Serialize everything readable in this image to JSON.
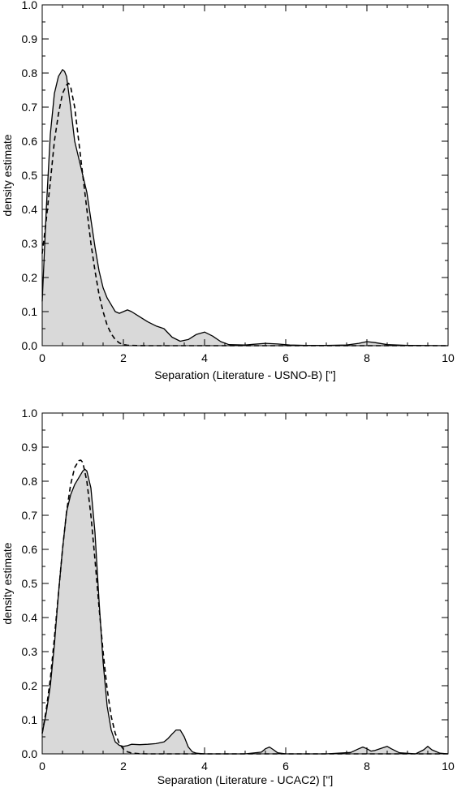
{
  "chart_data": [
    {
      "type": "area",
      "xlabel": "Separation (Literature - USNO-B)  [\"]",
      "ylabel": "density estimate",
      "xlim": [
        0,
        10
      ],
      "ylim": [
        0,
        1.0
      ],
      "x_ticks": [
        "0",
        "2",
        "4",
        "6",
        "8",
        "10"
      ],
      "y_ticks": [
        "0.0",
        "0.1",
        "0.2",
        "0.3",
        "0.4",
        "0.5",
        "0.6",
        "0.7",
        "0.8",
        "0.9",
        "1.0"
      ],
      "grid": false,
      "series": [
        {
          "style": "solid-filled",
          "fill": "#d9d9d9",
          "x": [
            0,
            0.1,
            0.2,
            0.3,
            0.4,
            0.5,
            0.55,
            0.6,
            0.7,
            0.8,
            0.9,
            1.0,
            1.1,
            1.2,
            1.3,
            1.4,
            1.5,
            1.6,
            1.7,
            1.8,
            1.9,
            2.0,
            2.1,
            2.2,
            2.4,
            2.6,
            2.8,
            3.0,
            3.2,
            3.4,
            3.6,
            3.8,
            4.0,
            4.2,
            4.4,
            4.6,
            5.0,
            5.2,
            5.5,
            5.8,
            6.1,
            6.5,
            7.0,
            7.5,
            7.8,
            8.0,
            8.2,
            8.5,
            9.0,
            10.0
          ],
          "y": [
            0.13,
            0.4,
            0.62,
            0.74,
            0.79,
            0.81,
            0.805,
            0.79,
            0.7,
            0.6,
            0.55,
            0.5,
            0.45,
            0.37,
            0.29,
            0.22,
            0.17,
            0.14,
            0.12,
            0.1,
            0.095,
            0.1,
            0.105,
            0.1,
            0.085,
            0.07,
            0.058,
            0.05,
            0.025,
            0.013,
            0.018,
            0.033,
            0.04,
            0.028,
            0.012,
            0.003,
            0.002,
            0.004,
            0.007,
            0.005,
            0.002,
            0.001,
            0.001,
            0.002,
            0.007,
            0.012,
            0.009,
            0.003,
            0.001,
            0.0
          ]
        },
        {
          "style": "dashed",
          "x": [
            0,
            0.1,
            0.2,
            0.3,
            0.4,
            0.5,
            0.6,
            0.65,
            0.7,
            0.8,
            0.9,
            1.0,
            1.1,
            1.2,
            1.3,
            1.4,
            1.5,
            1.6,
            1.7,
            1.8,
            1.9,
            2.0,
            2.1,
            2.2,
            2.4,
            2.6,
            3.0,
            4.0,
            6.0,
            8.0,
            10.0
          ],
          "y": [
            0.27,
            0.37,
            0.48,
            0.6,
            0.68,
            0.74,
            0.765,
            0.77,
            0.76,
            0.7,
            0.6,
            0.5,
            0.4,
            0.3,
            0.22,
            0.15,
            0.1,
            0.06,
            0.035,
            0.018,
            0.008,
            0.003,
            0.0015,
            0.0008,
            0.0003,
            0.0001,
            0.0,
            0.0,
            0.0,
            0.0,
            0.0
          ]
        }
      ]
    },
    {
      "type": "area",
      "xlabel": "Separation (Literature - UCAC2)  [\"]",
      "ylabel": "density estimate",
      "xlim": [
        0,
        10
      ],
      "ylim": [
        0,
        1.0
      ],
      "x_ticks": [
        "0",
        "2",
        "4",
        "6",
        "8",
        "10"
      ],
      "y_ticks": [
        "0.0",
        "0.1",
        "0.2",
        "0.3",
        "0.4",
        "0.5",
        "0.6",
        "0.7",
        "0.8",
        "0.9",
        "1.0"
      ],
      "grid": false,
      "series": [
        {
          "style": "solid-filled",
          "fill": "#d9d9d9",
          "x": [
            0,
            0.1,
            0.2,
            0.3,
            0.4,
            0.5,
            0.6,
            0.7,
            0.8,
            0.9,
            1.0,
            1.05,
            1.1,
            1.2,
            1.3,
            1.4,
            1.5,
            1.6,
            1.7,
            1.8,
            1.9,
            2.0,
            2.1,
            2.2,
            2.4,
            2.6,
            2.8,
            3.0,
            3.1,
            3.2,
            3.3,
            3.4,
            3.5,
            3.6,
            3.7,
            3.8,
            4.0,
            4.5,
            5.0,
            5.4,
            5.5,
            5.6,
            5.7,
            5.8,
            6.0,
            7.0,
            7.6,
            7.8,
            7.9,
            8.0,
            8.1,
            8.2,
            8.4,
            8.5,
            8.6,
            8.8,
            9.2,
            9.4,
            9.5,
            9.6,
            9.8,
            10.0
          ],
          "y": [
            0.06,
            0.12,
            0.2,
            0.32,
            0.47,
            0.6,
            0.71,
            0.76,
            0.79,
            0.81,
            0.83,
            0.835,
            0.83,
            0.78,
            0.65,
            0.45,
            0.27,
            0.14,
            0.07,
            0.035,
            0.025,
            0.022,
            0.024,
            0.028,
            0.027,
            0.028,
            0.03,
            0.035,
            0.045,
            0.058,
            0.07,
            0.07,
            0.05,
            0.02,
            0.006,
            0.002,
            0.0,
            0.0,
            0.0,
            0.005,
            0.015,
            0.02,
            0.012,
            0.003,
            0.0,
            0.0,
            0.004,
            0.015,
            0.02,
            0.015,
            0.008,
            0.01,
            0.018,
            0.022,
            0.015,
            0.003,
            0.0,
            0.012,
            0.022,
            0.012,
            0.002,
            0.0
          ]
        },
        {
          "style": "dashed",
          "x": [
            0,
            0.1,
            0.2,
            0.3,
            0.4,
            0.5,
            0.6,
            0.7,
            0.8,
            0.9,
            0.95,
            1.0,
            1.1,
            1.2,
            1.3,
            1.4,
            1.5,
            1.6,
            1.7,
            1.8,
            1.9,
            2.0,
            2.1,
            2.2,
            2.4,
            2.6,
            3.0,
            4.0,
            6.0,
            8.0,
            10.0
          ],
          "y": [
            0.06,
            0.13,
            0.22,
            0.34,
            0.47,
            0.6,
            0.71,
            0.79,
            0.84,
            0.86,
            0.862,
            0.855,
            0.8,
            0.7,
            0.57,
            0.43,
            0.3,
            0.19,
            0.11,
            0.06,
            0.03,
            0.014,
            0.006,
            0.0025,
            0.0004,
            0.0001,
            0.0,
            0.0,
            0.0,
            0.0,
            0.0
          ]
        }
      ]
    }
  ]
}
